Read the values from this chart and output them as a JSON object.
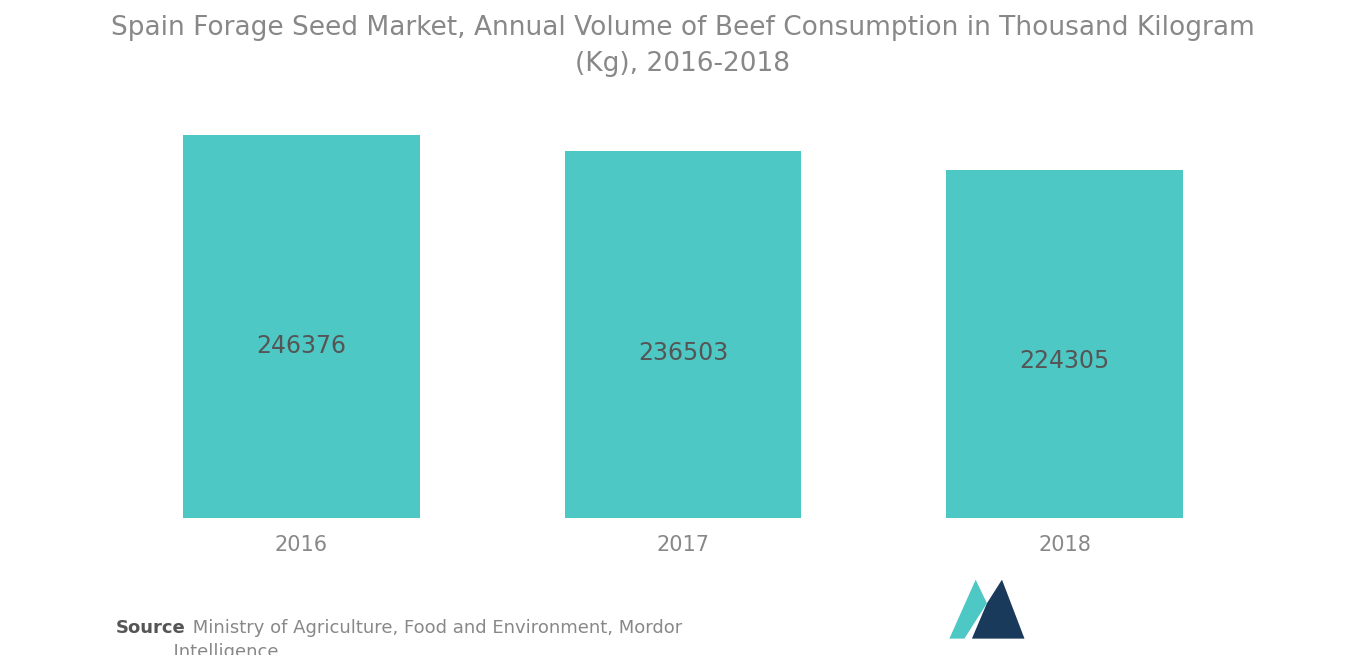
{
  "title": "Spain Forage Seed Market, Annual Volume of Beef Consumption in Thousand Kilogram\n(Kg), 2016-2018",
  "categories": [
    "2016",
    "2017",
    "2018"
  ],
  "values": [
    246376,
    236503,
    224305
  ],
  "bar_color": "#4DC8C4",
  "label_color": "#555555",
  "label_fontsize": 17,
  "title_fontsize": 19,
  "title_color": "#888888",
  "xlabel_fontsize": 15,
  "xlabel_color": "#888888",
  "background_color": "#ffffff",
  "bar_width": 0.62,
  "ylim": [
    0,
    270000
  ],
  "source_bold": "Source",
  "source_normal": " Ministry of Agriculture, Food and Environment, Mordor",
  "source_line2": "          Intelligence",
  "source_fontsize": 13,
  "logo_teal": "#4DC8C4",
  "logo_navy": "#1A3A5C"
}
